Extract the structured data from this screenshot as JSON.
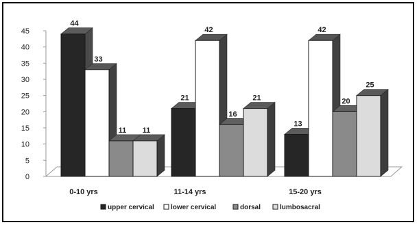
{
  "chart_data": {
    "type": "bar",
    "title": "",
    "xlabel": "",
    "ylabel": "",
    "categories": [
      "0-10 yrs",
      "11-14 yrs",
      "15-20 yrs"
    ],
    "ylim": [
      0,
      45
    ],
    "yticks": [
      0,
      5,
      10,
      15,
      20,
      25,
      30,
      35,
      40,
      45
    ],
    "grid": false,
    "three_d": true,
    "legend_position": "bottom",
    "series": [
      {
        "name": "upper cervical",
        "values": [
          44,
          21,
          13
        ],
        "color": "#262626",
        "side_color": "#4a4a4a",
        "top_color": "#5c5c5c"
      },
      {
        "name": "lower cervical",
        "values": [
          33,
          42,
          42
        ],
        "color": "#ffffff",
        "side_color": "#404040",
        "top_color": "#555555"
      },
      {
        "name": "dorsal",
        "values": [
          11,
          16,
          20
        ],
        "color": "#8a8a8a",
        "side_color": "#4d4d4d",
        "top_color": "#606060"
      },
      {
        "name": "lumbosacral",
        "values": [
          11,
          21,
          25
        ],
        "color": "#dcdcdc",
        "side_color": "#3d3d3d",
        "top_color": "#5a5a5a"
      }
    ]
  }
}
